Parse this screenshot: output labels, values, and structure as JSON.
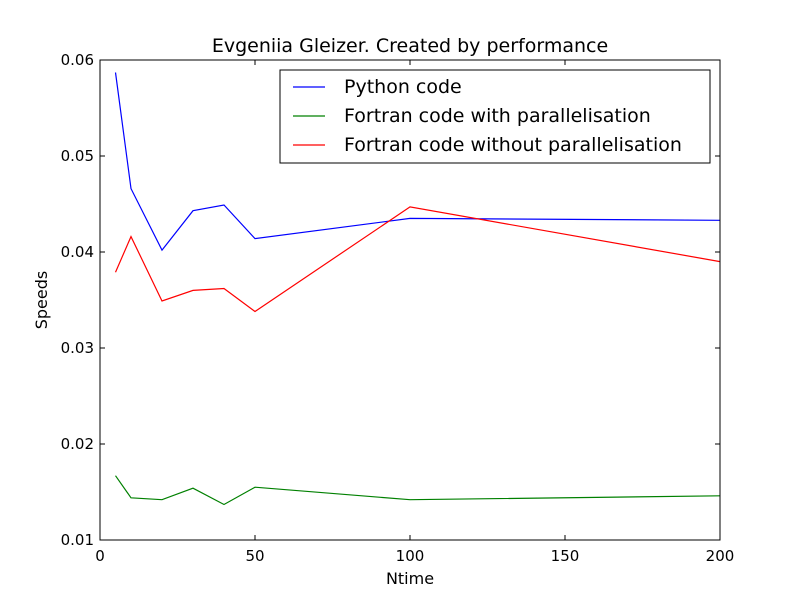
{
  "chart_data": {
    "type": "line",
    "title": "Evgeniia Gleizer. Created by performance",
    "xlabel": "Ntime",
    "ylabel": "Speeds",
    "xlim": [
      0,
      200
    ],
    "ylim": [
      0.01,
      0.06
    ],
    "xticks": [
      0,
      50,
      100,
      150,
      200
    ],
    "xtick_labels": [
      "0",
      "50",
      "100",
      "150",
      "200"
    ],
    "yticks": [
      0.01,
      0.02,
      0.03,
      0.04,
      0.05,
      0.06
    ],
    "ytick_labels": [
      "0.01",
      "0.02",
      "0.03",
      "0.04",
      "0.05",
      "0.06"
    ],
    "grid": false,
    "legend_position": "top-right",
    "series": [
      {
        "name": "Python code",
        "color": "#0000ff",
        "x": [
          5,
          10,
          20,
          30,
          40,
          50,
          100,
          200
        ],
        "values": [
          0.0587,
          0.0466,
          0.0402,
          0.0443,
          0.0449,
          0.0414,
          0.0435,
          0.0433
        ]
      },
      {
        "name": "Fortran code with parallelisation",
        "color": "#008000",
        "x": [
          5,
          10,
          20,
          30,
          40,
          50,
          100,
          200
        ],
        "values": [
          0.0167,
          0.0144,
          0.0142,
          0.0154,
          0.0137,
          0.0155,
          0.0142,
          0.0146
        ]
      },
      {
        "name": "Fortran code without parallelisation",
        "color": "#ff0000",
        "x": [
          5,
          10,
          20,
          30,
          40,
          50,
          100,
          200
        ],
        "values": [
          0.0379,
          0.0416,
          0.0349,
          0.036,
          0.0362,
          0.0338,
          0.0447,
          0.039
        ]
      }
    ]
  }
}
